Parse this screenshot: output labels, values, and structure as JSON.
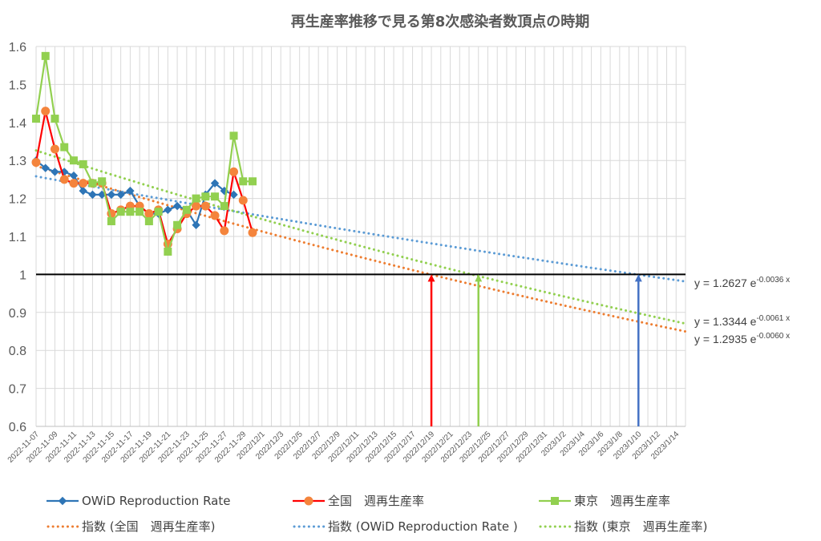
{
  "chart_data": {
    "type": "line",
    "title": "再生産率推移で見る第8次感染者数頂点の時期",
    "ylim": [
      0.6,
      1.6
    ],
    "yticks": [
      "0.6",
      "0.7",
      "0.8",
      "0.9",
      "1",
      "1.1",
      "1.2",
      "1.3",
      "1.4",
      "1.5",
      "1.6"
    ],
    "x_start": "2022-11-07",
    "x_end": "2023-01-15",
    "x_tick_labels": [
      "2022-11-07",
      "2022-11-09",
      "2022-11-11",
      "2022-11-13",
      "2022-11-15",
      "2022-11-17",
      "2022-11-19",
      "2022-11-21",
      "2022-11-23",
      "2022-11-25",
      "2022-11-27",
      "2022-11-29",
      "2022/12/1",
      "2022/12/3",
      "2022/12/5",
      "2022/12/7",
      "2022/12/9",
      "2022/12/11",
      "2022/12/13",
      "2022/12/15",
      "2022/12/17",
      "2022/12/19",
      "2022/12/21",
      "2022/12/23",
      "2022/12/25",
      "2022/12/27",
      "2022/12/29",
      "2022/12/31",
      "2023/1/2",
      "2023/1/4",
      "2023/1/6",
      "2023/1/8",
      "2023/1/10",
      "2023/1/12",
      "2023/1/14"
    ],
    "reference_line": {
      "y": 1,
      "color": "#000000"
    },
    "series": [
      {
        "name": "OWiD Reproduction Rate",
        "color": "#2E75B6",
        "marker": "diamond",
        "x": [
          "2022-11-07",
          "2022-11-08",
          "2022-11-09",
          "2022-11-10",
          "2022-11-11",
          "2022-11-12",
          "2022-11-13",
          "2022-11-14",
          "2022-11-15",
          "2022-11-16",
          "2022-11-17",
          "2022-11-18",
          "2022-11-19",
          "2022-11-20",
          "2022-11-21",
          "2022-11-22",
          "2022-11-23",
          "2022-11-24",
          "2022-11-25",
          "2022-11-26",
          "2022-11-27",
          "2022-11-28"
        ],
        "values": [
          1.3,
          1.28,
          1.27,
          1.27,
          1.26,
          1.22,
          1.21,
          1.21,
          1.21,
          1.21,
          1.22,
          1.18,
          1.16,
          1.16,
          1.17,
          1.18,
          1.17,
          1.13,
          1.21,
          1.24,
          1.22,
          1.21
        ]
      },
      {
        "name": "全国　週再生産率",
        "color": "#FF0000",
        "marker_color": "#F4843C",
        "marker": "circle",
        "x": [
          "2022-11-07",
          "2022-11-08",
          "2022-11-09",
          "2022-11-10",
          "2022-11-11",
          "2022-11-12",
          "2022-11-13",
          "2022-11-14",
          "2022-11-15",
          "2022-11-16",
          "2022-11-17",
          "2022-11-18",
          "2022-11-19",
          "2022-11-20",
          "2022-11-21",
          "2022-11-22",
          "2022-11-23",
          "2022-11-24",
          "2022-11-25",
          "2022-11-26",
          "2022-11-27",
          "2022-11-28",
          "2022-11-29",
          "2022-11-30"
        ],
        "values": [
          1.295,
          1.43,
          1.33,
          1.25,
          1.24,
          1.24,
          1.24,
          1.24,
          1.16,
          1.17,
          1.18,
          1.18,
          1.16,
          1.17,
          1.08,
          1.12,
          1.16,
          1.18,
          1.18,
          1.155,
          1.115,
          1.27,
          1.195,
          1.11
        ]
      },
      {
        "name": "東京　週再生産率",
        "color": "#92D050",
        "marker": "square",
        "x": [
          "2022-11-07",
          "2022-11-08",
          "2022-11-09",
          "2022-11-10",
          "2022-11-11",
          "2022-11-12",
          "2022-11-13",
          "2022-11-14",
          "2022-11-15",
          "2022-11-16",
          "2022-11-17",
          "2022-11-18",
          "2022-11-19",
          "2022-11-20",
          "2022-11-21",
          "2022-11-22",
          "2022-11-23",
          "2022-11-24",
          "2022-11-25",
          "2022-11-26",
          "2022-11-27",
          "2022-11-28",
          "2022-11-29",
          "2022-11-30"
        ],
        "values": [
          1.41,
          1.575,
          1.41,
          1.335,
          1.3,
          1.29,
          1.24,
          1.245,
          1.14,
          1.165,
          1.165,
          1.165,
          1.14,
          1.165,
          1.06,
          1.13,
          1.17,
          1.2,
          1.205,
          1.205,
          1.18,
          1.365,
          1.245,
          1.245
        ]
      }
    ],
    "trendlines": [
      {
        "name": "指数 (全国　週再生産率)",
        "color": "#ED7D31",
        "equation_coef": "1.2935",
        "equation_exp": "-0.0060 x",
        "coef": 1.2935,
        "k": -0.006,
        "x_from": "2022-11-07",
        "x_to": "2023-01-15"
      },
      {
        "name": "指数 (OWiD Reproduction Rate )",
        "color": "#5B9BD5",
        "equation_coef": "1.2627",
        "equation_exp": "-0.0036 x",
        "coef": 1.2627,
        "k": -0.0036,
        "x_from": "2022-11-07",
        "x_to": "2023-01-15"
      },
      {
        "name": "指数 (東京　週再生産率)",
        "color": "#92D050",
        "equation_coef": "1.3344",
        "equation_exp": "-0.0061 x",
        "coef": 1.3344,
        "k": -0.0061,
        "x_from": "2022-11-07",
        "x_to": "2023-01-15"
      }
    ],
    "equation_prefix": "y = ",
    "equation_base": " e",
    "arrows": [
      {
        "x": "2022-12-19",
        "y_from": 0.6,
        "y_to": 1.0,
        "color": "#FF0000"
      },
      {
        "x": "2022-12-24",
        "y_from": 0.6,
        "y_to": 1.0,
        "color": "#92D050"
      },
      {
        "x": "2023-01-10",
        "y_from": 0.6,
        "y_to": 1.0,
        "color": "#4472C4"
      }
    ],
    "grid": true,
    "legend": {
      "position": "bottom",
      "items": [
        {
          "label": "OWiD Reproduction Rate",
          "color": "#2E75B6",
          "style": "line-marker",
          "marker": "diamond"
        },
        {
          "label": "全国　週再生産率",
          "color": "#FF0000",
          "marker_color": "#F4843C",
          "style": "line-marker",
          "marker": "circle"
        },
        {
          "label": "東京　週再生産率",
          "color": "#92D050",
          "style": "line-marker",
          "marker": "square"
        },
        {
          "label": "指数 (全国　週再生産率)",
          "color": "#ED7D31",
          "style": "dotted"
        },
        {
          "label": "指数 (OWiD Reproduction Rate )",
          "color": "#5B9BD5",
          "style": "dotted"
        },
        {
          "label": "指数 (東京　週再生産率)",
          "color": "#92D050",
          "style": "dotted"
        }
      ]
    }
  }
}
